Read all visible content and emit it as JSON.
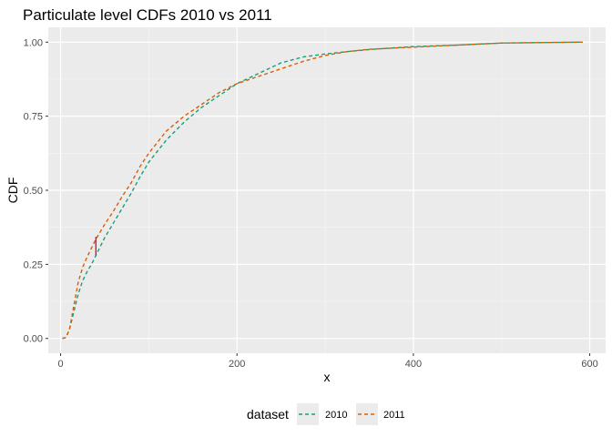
{
  "chart_data": {
    "type": "line",
    "title": "Particulate level CDFs 2010 vs 2011",
    "xlabel": "x",
    "ylabel": "CDF",
    "xlim": [
      -14,
      618
    ],
    "ylim": [
      -0.05,
      1.05
    ],
    "x_ticks": [
      0,
      200,
      400,
      600
    ],
    "x_tick_labels": [
      "0",
      "200",
      "400",
      "600"
    ],
    "y_ticks": [
      0,
      0.25,
      0.5,
      0.75,
      1
    ],
    "y_tick_labels": [
      "0.00",
      "0.25",
      "0.50",
      "0.75",
      "1.00"
    ],
    "grid": true,
    "legend": {
      "title": "dataset",
      "position": "bottom"
    },
    "series": [
      {
        "name": "2010",
        "color": "#1b9e77",
        "style": "dashed",
        "points": [
          [
            2,
            0
          ],
          [
            6,
            0.003
          ],
          [
            10,
            0.03
          ],
          [
            15,
            0.09
          ],
          [
            20,
            0.15
          ],
          [
            25,
            0.195
          ],
          [
            30,
            0.225
          ],
          [
            35,
            0.25
          ],
          [
            40,
            0.28
          ],
          [
            45,
            0.31
          ],
          [
            50,
            0.34
          ],
          [
            60,
            0.39
          ],
          [
            70,
            0.44
          ],
          [
            80,
            0.49
          ],
          [
            90,
            0.545
          ],
          [
            100,
            0.595
          ],
          [
            120,
            0.67
          ],
          [
            140,
            0.73
          ],
          [
            160,
            0.78
          ],
          [
            180,
            0.82
          ],
          [
            200,
            0.86
          ],
          [
            225,
            0.895
          ],
          [
            250,
            0.93
          ],
          [
            275,
            0.95
          ],
          [
            300,
            0.96
          ],
          [
            325,
            0.968
          ],
          [
            350,
            0.975
          ],
          [
            400,
            0.985
          ],
          [
            450,
            0.99
          ],
          [
            500,
            0.997
          ],
          [
            560,
            0.999
          ],
          [
            592,
            1
          ]
        ]
      },
      {
        "name": "2011",
        "color": "#d95f02",
        "style": "dashed",
        "points": [
          [
            2,
            0
          ],
          [
            6,
            0.003
          ],
          [
            10,
            0.03
          ],
          [
            15,
            0.11
          ],
          [
            20,
            0.19
          ],
          [
            25,
            0.24
          ],
          [
            30,
            0.275
          ],
          [
            35,
            0.305
          ],
          [
            40,
            0.335
          ],
          [
            45,
            0.36
          ],
          [
            50,
            0.385
          ],
          [
            60,
            0.43
          ],
          [
            70,
            0.48
          ],
          [
            80,
            0.525
          ],
          [
            90,
            0.58
          ],
          [
            100,
            0.625
          ],
          [
            120,
            0.7
          ],
          [
            140,
            0.75
          ],
          [
            160,
            0.79
          ],
          [
            180,
            0.83
          ],
          [
            200,
            0.86
          ],
          [
            225,
            0.885
          ],
          [
            250,
            0.91
          ],
          [
            275,
            0.935
          ],
          [
            300,
            0.955
          ],
          [
            325,
            0.968
          ],
          [
            350,
            0.976
          ],
          [
            400,
            0.983
          ],
          [
            450,
            0.99
          ],
          [
            500,
            0.997
          ],
          [
            560,
            0.999
          ],
          [
            592,
            1
          ]
        ]
      }
    ],
    "annotations": [
      {
        "type": "segment",
        "color": "#c51b5b",
        "x": [
          40,
          40
        ],
        "y": [
          0.28,
          0.343
        ]
      }
    ]
  }
}
